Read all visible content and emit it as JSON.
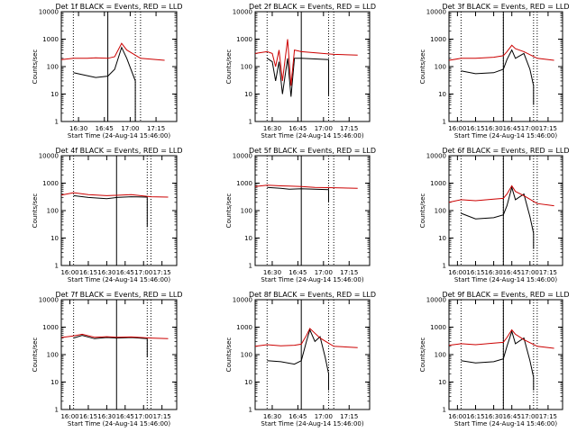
{
  "chart_data": [
    {
      "type": "line",
      "title": "Det 1f BLACK = Events, RED = LLD",
      "xlabel": "Start Time (24-Aug-14 15:46:00)",
      "ylabel": "Counts/sec",
      "yscale": "log",
      "ylim": [
        1,
        10000
      ],
      "yticks": [
        "1",
        "10",
        "100",
        "1000",
        "10000"
      ],
      "xlim": [
        "16:20",
        "17:27"
      ],
      "xticks": [
        "16:30",
        "16:45",
        "17:00",
        "17:15"
      ],
      "dotted_lines": [
        "16:27",
        "17:03",
        "17:06"
      ],
      "solid_lines": [
        "16:47"
      ],
      "series": [
        {
          "color": "#000000",
          "x": [
            "16:27",
            "16:33",
            "16:40",
            "16:47",
            "16:51",
            "16:55",
            "16:58",
            "17:03",
            "17:03"
          ],
          "y": [
            60,
            50,
            40,
            45,
            80,
            500,
            200,
            30,
            1
          ]
        },
        {
          "color": "#cc0000",
          "x": [
            "16:20",
            "16:27",
            "16:35",
            "16:40",
            "16:47",
            "16:51",
            "16:55",
            "16:58",
            "17:06",
            "17:20"
          ],
          "y": [
            180,
            200,
            200,
            210,
            200,
            230,
            700,
            400,
            200,
            170
          ]
        }
      ]
    },
    {
      "type": "line",
      "title": "Det 2f BLACK = Events, RED = LLD",
      "xlabel": "Start Time (24-Aug-14 15:46:00)",
      "ylabel": "Counts/sec",
      "yscale": "log",
      "ylim": [
        1,
        10000
      ],
      "yticks": [
        "1",
        "10",
        "100",
        "1000",
        "10000"
      ],
      "xlim": [
        "16:20",
        "17:27"
      ],
      "xticks": [
        "16:30",
        "16:45",
        "17:00",
        "17:15"
      ],
      "dotted_lines": [
        "16:27",
        "17:03",
        "17:06"
      ],
      "solid_lines": [
        "16:47"
      ],
      "series": [
        {
          "color": "#000000",
          "x": [
            "16:27",
            "16:30",
            "16:32",
            "16:34",
            "16:36",
            "16:39",
            "16:41",
            "16:43",
            "16:47",
            "17:03",
            "17:03"
          ],
          "y": [
            200,
            150,
            30,
            150,
            10,
            200,
            8,
            200,
            200,
            180,
            9
          ]
        },
        {
          "color": "#cc0000",
          "x": [
            "16:20",
            "16:27",
            "16:30",
            "16:32",
            "16:34",
            "16:36",
            "16:39",
            "16:41",
            "16:43",
            "16:47",
            "17:06",
            "17:20"
          ],
          "y": [
            300,
            350,
            300,
            100,
            400,
            30,
            1000,
            20,
            400,
            350,
            280,
            260
          ]
        }
      ]
    },
    {
      "type": "line",
      "title": "Det 3f BLACK = Events, RED = LLD",
      "xlabel": "Start Time (24-Aug-14 15:46:00)",
      "ylabel": "Counts/sec",
      "yscale": "log",
      "ylim": [
        1,
        10000
      ],
      "yticks": [
        "1",
        "10",
        "100",
        "1000",
        "10000"
      ],
      "xlim": [
        "15:53",
        "17:27"
      ],
      "xticks": [
        "16:00",
        "16:15",
        "16:30",
        "16:45",
        "17:00",
        "17:15"
      ],
      "dotted_lines": [
        "16:03",
        "16:38",
        "17:03",
        "17:06"
      ],
      "solid_lines": [
        "16:38"
      ],
      "series": [
        {
          "color": "#000000",
          "x": [
            "16:03",
            "16:15",
            "16:30",
            "16:38",
            "16:41",
            "16:45",
            "16:48",
            "16:55",
            "17:00",
            "17:03",
            "17:03"
          ],
          "y": [
            70,
            55,
            60,
            80,
            180,
            400,
            200,
            300,
            80,
            20,
            4
          ]
        },
        {
          "color": "#cc0000",
          "x": [
            "15:53",
            "16:03",
            "16:15",
            "16:30",
            "16:38",
            "16:41",
            "16:45",
            "16:48",
            "16:55",
            "17:06",
            "17:20"
          ],
          "y": [
            170,
            200,
            200,
            220,
            250,
            350,
            600,
            450,
            350,
            200,
            170
          ]
        }
      ]
    },
    {
      "type": "line",
      "title": "Det 4f BLACK = Events, RED = LLD",
      "xlabel": "Start Time (24-Aug-14 15:46:00)",
      "ylabel": "Counts/sec",
      "yscale": "log",
      "ylim": [
        1,
        10000
      ],
      "yticks": [
        "1",
        "10",
        "100",
        "1000",
        "10000"
      ],
      "xlim": [
        "15:53",
        "17:27"
      ],
      "xticks": [
        "16:00",
        "16:15",
        "16:30",
        "16:45",
        "17:00",
        "17:15"
      ],
      "dotted_lines": [
        "16:03",
        "17:03",
        "17:06"
      ],
      "solid_lines": [
        "16:38"
      ],
      "series": [
        {
          "color": "#000000",
          "x": [
            "16:03",
            "16:15",
            "16:30",
            "16:38",
            "16:50",
            "17:03",
            "17:03"
          ],
          "y": [
            350,
            300,
            270,
            300,
            320,
            310,
            25
          ]
        },
        {
          "color": "#cc0000",
          "x": [
            "15:53",
            "16:03",
            "16:15",
            "16:30",
            "16:38",
            "16:50",
            "17:06",
            "17:20"
          ],
          "y": [
            370,
            450,
            380,
            350,
            360,
            380,
            320,
            310
          ]
        }
      ]
    },
    {
      "type": "line",
      "title": "Det 5f BLACK = Events, RED = LLD",
      "xlabel": "Start Time (24-Aug-14 15:46:00)",
      "ylabel": "Counts/sec",
      "yscale": "log",
      "ylim": [
        1,
        10000
      ],
      "yticks": [
        "1",
        "10",
        "100",
        "1000",
        "10000"
      ],
      "xlim": [
        "16:20",
        "17:27"
      ],
      "xticks": [
        "16:30",
        "16:45",
        "17:00",
        "17:15"
      ],
      "dotted_lines": [
        "16:27",
        "17:03",
        "17:06"
      ],
      "solid_lines": [
        "16:47"
      ],
      "series": [
        {
          "color": "#000000",
          "x": [
            "16:27",
            "16:35",
            "16:40",
            "16:47",
            "16:55",
            "17:03",
            "17:03"
          ],
          "y": [
            700,
            650,
            600,
            620,
            600,
            580,
            200
          ]
        },
        {
          "color": "#cc0000",
          "x": [
            "16:20",
            "16:27",
            "16:35",
            "16:40",
            "16:47",
            "16:55",
            "17:06",
            "17:20"
          ],
          "y": [
            750,
            850,
            800,
            780,
            750,
            700,
            680,
            650
          ]
        }
      ]
    },
    {
      "type": "line",
      "title": "Det 6f BLACK = Events, RED = LLD",
      "xlabel": "Start Time (24-Aug-14 15:46:00)",
      "ylabel": "Counts/sec",
      "yscale": "log",
      "ylim": [
        1,
        10000
      ],
      "yticks": [
        "1",
        "10",
        "100",
        "1000",
        "10000"
      ],
      "xlim": [
        "15:53",
        "17:27"
      ],
      "xticks": [
        "16:00",
        "16:15",
        "16:30",
        "16:45",
        "17:00",
        "17:15"
      ],
      "dotted_lines": [
        "16:03",
        "16:38",
        "17:03",
        "17:06"
      ],
      "solid_lines": [
        "16:38"
      ],
      "series": [
        {
          "color": "#000000",
          "x": [
            "16:03",
            "16:15",
            "16:30",
            "16:38",
            "16:41",
            "16:45",
            "16:48",
            "16:55",
            "17:00",
            "17:03",
            "17:03"
          ],
          "y": [
            80,
            50,
            55,
            70,
            150,
            700,
            250,
            400,
            60,
            15,
            4
          ]
        },
        {
          "color": "#cc0000",
          "x": [
            "15:53",
            "16:03",
            "16:15",
            "16:30",
            "16:38",
            "16:41",
            "16:45",
            "16:48",
            "16:55",
            "17:06",
            "17:20"
          ],
          "y": [
            200,
            250,
            230,
            260,
            280,
            400,
            800,
            500,
            350,
            180,
            150
          ]
        }
      ]
    },
    {
      "type": "line",
      "title": "Det 7f BLACK = Events, RED = LLD",
      "xlabel": "Start Time (24-Aug-14 15:46:00)",
      "ylabel": "Counts/sec",
      "yscale": "log",
      "ylim": [
        1,
        10000
      ],
      "yticks": [
        "1",
        "10",
        "100",
        "1000",
        "10000"
      ],
      "xlim": [
        "15:53",
        "17:27"
      ],
      "xticks": [
        "16:00",
        "16:15",
        "16:30",
        "16:45",
        "17:00",
        "17:15"
      ],
      "dotted_lines": [
        "16:03",
        "17:03",
        "17:06"
      ],
      "solid_lines": [
        "16:38"
      ],
      "series": [
        {
          "color": "#000000",
          "x": [
            "16:03",
            "16:10",
            "16:20",
            "16:30",
            "16:38",
            "16:50",
            "17:03",
            "17:03"
          ],
          "y": [
            400,
            500,
            380,
            420,
            400,
            420,
            380,
            80
          ]
        },
        {
          "color": "#cc0000",
          "x": [
            "15:53",
            "16:03",
            "16:10",
            "16:20",
            "16:30",
            "16:38",
            "16:50",
            "17:06",
            "17:20"
          ],
          "y": [
            420,
            480,
            550,
            430,
            450,
            430,
            440,
            400,
            380
          ]
        }
      ]
    },
    {
      "type": "line",
      "title": "Det 8f BLACK = Events, RED = LLD",
      "xlabel": "Start Time (24-Aug-14 15:46:00)",
      "ylabel": "Counts/sec",
      "yscale": "log",
      "ylim": [
        1,
        10000
      ],
      "yticks": [
        "1",
        "10",
        "100",
        "1000",
        "10000"
      ],
      "xlim": [
        "16:20",
        "17:27"
      ],
      "xticks": [
        "16:30",
        "16:45",
        "17:00",
        "17:15"
      ],
      "dotted_lines": [
        "16:27",
        "17:03",
        "17:06"
      ],
      "solid_lines": [
        "16:47"
      ],
      "series": [
        {
          "color": "#000000",
          "x": [
            "16:27",
            "16:35",
            "16:43",
            "16:47",
            "16:50",
            "16:52",
            "16:55",
            "16:58",
            "17:01",
            "17:03",
            "17:03"
          ],
          "y": [
            60,
            55,
            45,
            60,
            300,
            800,
            300,
            450,
            80,
            20,
            5
          ]
        },
        {
          "color": "#cc0000",
          "x": [
            "16:20",
            "16:27",
            "16:35",
            "16:43",
            "16:47",
            "16:50",
            "16:52",
            "16:55",
            "16:58",
            "17:06",
            "17:20"
          ],
          "y": [
            200,
            230,
            210,
            220,
            240,
            500,
            900,
            600,
            400,
            200,
            180
          ]
        }
      ]
    },
    {
      "type": "line",
      "title": "Det 9f BLACK = Events, RED = LLD",
      "xlabel": "Start Time (24-Aug-14 15:46:00)",
      "ylabel": "Counts/sec",
      "yscale": "log",
      "ylim": [
        1,
        10000
      ],
      "yticks": [
        "1",
        "10",
        "100",
        "1000",
        "10000"
      ],
      "xlim": [
        "15:53",
        "17:27"
      ],
      "xticks": [
        "16:00",
        "16:15",
        "16:30",
        "16:45",
        "17:00",
        "17:15"
      ],
      "dotted_lines": [
        "16:03",
        "16:38",
        "17:03",
        "17:06"
      ],
      "solid_lines": [
        "16:38"
      ],
      "series": [
        {
          "color": "#000000",
          "x": [
            "16:03",
            "16:15",
            "16:30",
            "16:38",
            "16:41",
            "16:45",
            "16:48",
            "16:55",
            "17:00",
            "17:03",
            "17:03"
          ],
          "y": [
            60,
            50,
            55,
            70,
            200,
            700,
            250,
            400,
            60,
            15,
            5
          ]
        },
        {
          "color": "#cc0000",
          "x": [
            "15:53",
            "16:03",
            "16:15",
            "16:30",
            "16:38",
            "16:41",
            "16:45",
            "16:48",
            "16:55",
            "17:06",
            "17:20"
          ],
          "y": [
            220,
            250,
            230,
            260,
            280,
            420,
            800,
            550,
            350,
            200,
            170
          ]
        }
      ]
    }
  ]
}
